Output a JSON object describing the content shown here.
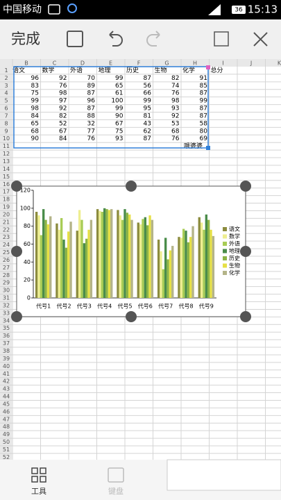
{
  "status_bar": {
    "carrier": "中国移动",
    "battery": "36",
    "time": "15:13"
  },
  "toolbar": {
    "done": "完成"
  },
  "sheet": {
    "columns": [
      "B",
      "C",
      "D",
      "E",
      "F",
      "G",
      "H",
      "I",
      "J",
      "K"
    ],
    "row_numbers": [
      1,
      2,
      3,
      4,
      5,
      6,
      7,
      8,
      9,
      10,
      11,
      12,
      13,
      14,
      15,
      16,
      17,
      18,
      19,
      20,
      21,
      22,
      23,
      24,
      25,
      26,
      27,
      28,
      29,
      30,
      31,
      32,
      33,
      34,
      35,
      36,
      37,
      38,
      39,
      40,
      41,
      42,
      43,
      44,
      45,
      46,
      47,
      48,
      49,
      50,
      51,
      52
    ],
    "header": [
      "语文",
      "数学",
      "外语",
      "地理",
      "历史",
      "生物",
      "化学",
      "总分"
    ],
    "rows": [
      [
        96,
        92,
        70,
        99,
        87,
        82,
        91
      ],
      [
        83,
        76,
        89,
        65,
        56,
        74,
        85
      ],
      [
        75,
        98,
        87,
        61,
        66,
        76,
        87
      ],
      [
        99,
        97,
        96,
        100,
        99,
        98,
        99
      ],
      [
        98,
        92,
        87,
        99,
        95,
        93,
        87
      ],
      [
        84,
        82,
        88,
        90,
        81,
        92,
        87
      ],
      [
        65,
        52,
        32,
        67,
        43,
        53,
        58
      ],
      [
        68,
        67,
        77,
        75,
        62,
        68,
        80
      ],
      [
        90,
        84,
        76,
        93,
        87,
        76,
        69
      ]
    ],
    "note": "哦婆婆"
  },
  "chart_data": {
    "type": "bar",
    "categories": [
      "代号1",
      "代号2",
      "代号3",
      "代号4",
      "代号5",
      "代号6",
      "代号7",
      "代号8",
      "代号9"
    ],
    "series": [
      {
        "name": "语文",
        "color": "#8c8c3e",
        "values": [
          96,
          83,
          75,
          99,
          98,
          84,
          65,
          68,
          90
        ]
      },
      {
        "name": "数学",
        "color": "#eeee90",
        "values": [
          92,
          76,
          98,
          97,
          92,
          82,
          52,
          67,
          84
        ]
      },
      {
        "name": "外语",
        "color": "#a8cc55",
        "values": [
          70,
          89,
          87,
          96,
          87,
          88,
          32,
          77,
          76
        ]
      },
      {
        "name": "地理",
        "color": "#4a8c4a",
        "values": [
          99,
          65,
          61,
          100,
          99,
          90,
          67,
          75,
          93
        ]
      },
      {
        "name": "历史",
        "color": "#8cb445",
        "values": [
          87,
          56,
          66,
          99,
          95,
          81,
          43,
          62,
          87
        ]
      },
      {
        "name": "生物",
        "color": "#e6e045",
        "values": [
          82,
          74,
          76,
          98,
          93,
          92,
          53,
          68,
          76
        ]
      },
      {
        "name": "化学",
        "color": "#b4b488",
        "values": [
          91,
          85,
          87,
          99,
          87,
          87,
          58,
          80,
          69
        ]
      }
    ],
    "ylim": [
      0,
      120
    ],
    "yticks": [
      0,
      20,
      40,
      60,
      80,
      100,
      120
    ],
    "legend": "right"
  },
  "bottom_bar": {
    "tools": "工具",
    "keyboard": "键盘"
  }
}
